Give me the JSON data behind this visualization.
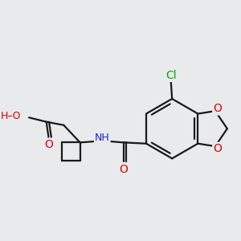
{
  "background_color": "#e8eaec",
  "bond_color": "#1a1a1a",
  "bond_width": 1.6,
  "atom_colors": {
    "O": "#e00000",
    "N": "#2222cc",
    "Cl": "#00aa00",
    "H": "#777777",
    "C": "#1a1a1a"
  },
  "font_size": 9,
  "fig_size": [
    3.0,
    3.0
  ],
  "dpi": 100
}
